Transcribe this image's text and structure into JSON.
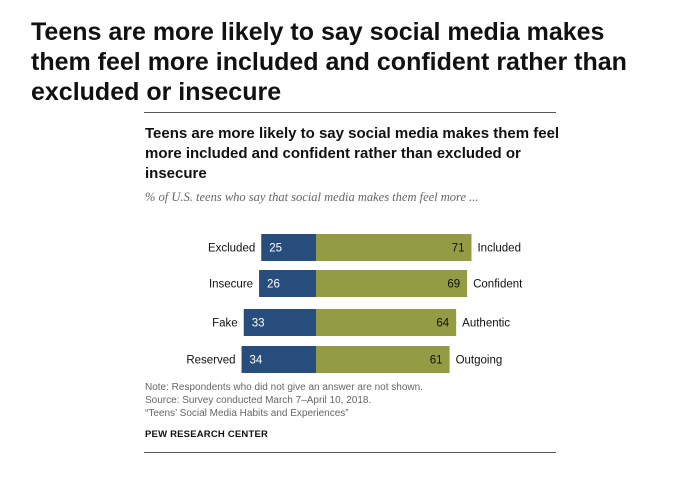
{
  "headline": "Teens are more likely to say social media makes them feel more included and confident rather than excluded or insecure",
  "chart_data": {
    "type": "bar",
    "orientation": "horizontal-diverging",
    "title": "Teens are more likely to say social media makes them feel more included and confident rather than excluded or insecure",
    "subtitle": "% of U.S. teens who say that social media makes them feel more ...",
    "rows": [
      {
        "left_label": "Excluded",
        "left_value": 25,
        "right_label": "Included",
        "right_value": 71
      },
      {
        "left_label": "Insecure",
        "left_value": 26,
        "right_label": "Confident",
        "right_value": 69
      },
      {
        "left_label": "Fake",
        "left_value": 33,
        "right_label": "Authentic",
        "right_value": 64
      },
      {
        "left_label": "Reserved",
        "left_value": 34,
        "right_label": "Outgoing",
        "right_value": 61
      }
    ],
    "colors": {
      "negative": "#274d7c",
      "positive": "#939c45"
    }
  },
  "notes": {
    "note": "Note: Respondents who did not give an answer are not shown.",
    "source": "Source: Survey conducted March 7–April 10, 2018.",
    "report": "“Teens’ Social Media Habits and Experiences”"
  },
  "brand": "PEW RESEARCH CENTER"
}
